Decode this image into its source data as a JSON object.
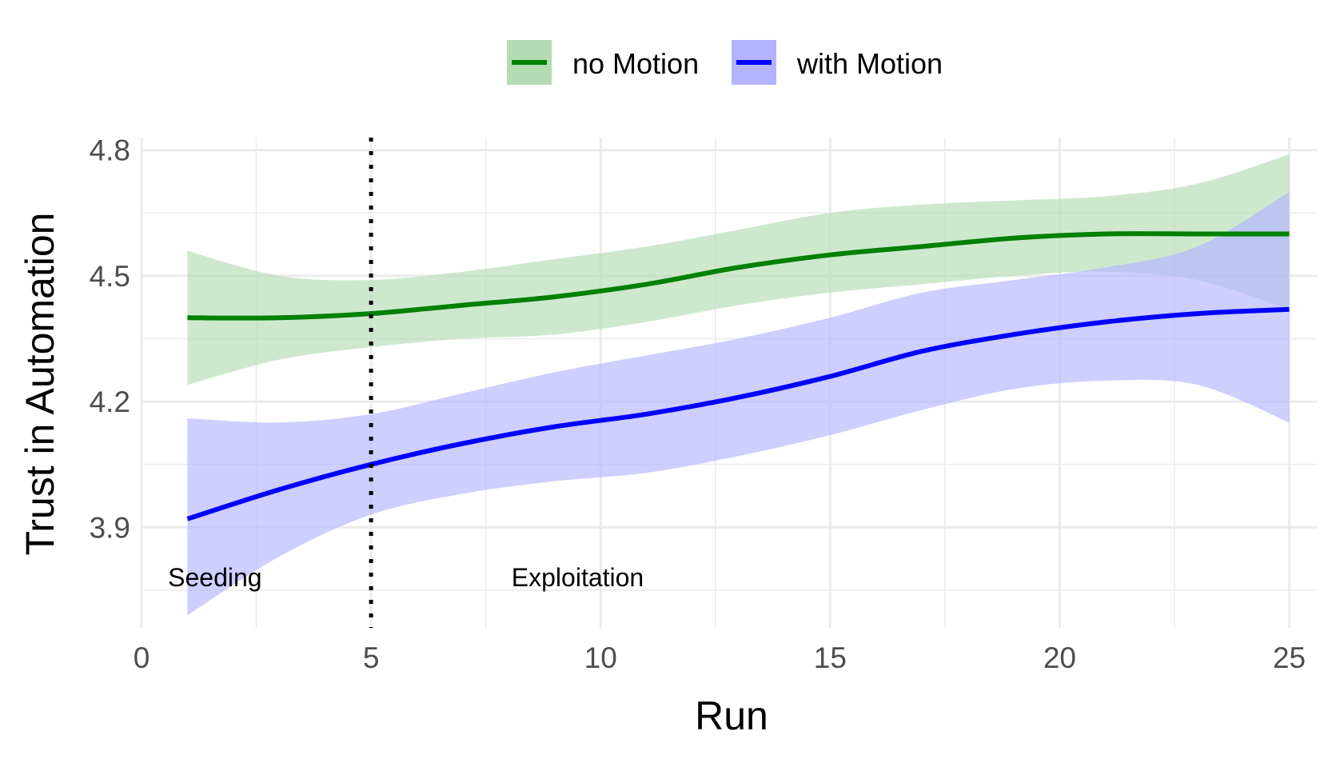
{
  "chart_data": {
    "type": "line",
    "xlabel": "Run",
    "ylabel": "Trust in Automation",
    "xlim": [
      0,
      25.6
    ],
    "ylim": [
      3.66,
      4.83
    ],
    "x_ticks": [
      0,
      5,
      10,
      15,
      20,
      25
    ],
    "y_ticks": [
      3.9,
      4.2,
      4.5,
      4.8
    ],
    "grid": true,
    "legend_position": "top",
    "series": [
      {
        "name": "no Motion",
        "color": "#008000",
        "band_color": "#b3dcb3",
        "x": [
          1,
          3,
          5,
          7,
          9,
          11,
          13,
          15,
          17,
          19,
          21,
          23,
          25
        ],
        "y": [
          4.4,
          4.4,
          4.41,
          4.43,
          4.45,
          4.48,
          4.52,
          4.55,
          4.57,
          4.59,
          4.6,
          4.6,
          4.6
        ],
        "lower": [
          4.24,
          4.3,
          4.33,
          4.35,
          4.36,
          4.39,
          4.43,
          4.46,
          4.48,
          4.5,
          4.51,
          4.49,
          4.42
        ],
        "upper": [
          4.56,
          4.5,
          4.49,
          4.51,
          4.54,
          4.57,
          4.61,
          4.65,
          4.67,
          4.68,
          4.69,
          4.72,
          4.79
        ]
      },
      {
        "name": "with Motion",
        "color": "#0000ff",
        "band_color": "#b3b3ff",
        "x": [
          1,
          3,
          5,
          7,
          9,
          11,
          13,
          15,
          17,
          19,
          21,
          23,
          25
        ],
        "y": [
          3.92,
          3.99,
          4.05,
          4.1,
          4.14,
          4.17,
          4.21,
          4.26,
          4.32,
          4.36,
          4.39,
          4.41,
          4.42
        ],
        "lower": [
          3.69,
          3.83,
          3.93,
          3.98,
          4.01,
          4.03,
          4.07,
          4.12,
          4.18,
          4.23,
          4.25,
          4.24,
          4.15
        ],
        "upper": [
          4.16,
          4.15,
          4.17,
          4.22,
          4.27,
          4.31,
          4.35,
          4.4,
          4.46,
          4.49,
          4.52,
          4.57,
          4.7
        ]
      }
    ],
    "vline": {
      "x": 5,
      "style": "dotted",
      "color": "#000000"
    },
    "annotations": [
      {
        "text": "Seeding",
        "x": 1.6,
        "y": 3.78
      },
      {
        "text": "Exploitation",
        "x": 9.5,
        "y": 3.78
      }
    ]
  }
}
